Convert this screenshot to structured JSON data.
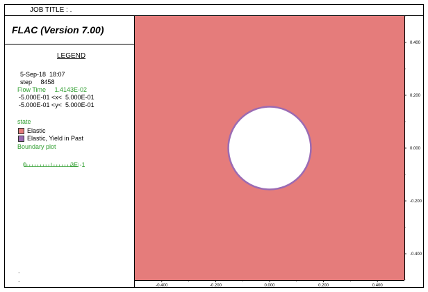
{
  "job_title": "JOB TITLE : .",
  "app_title": "FLAC (Version 7.00)",
  "legend": {
    "heading": "LEGEND",
    "date": "5-Sep-18  18:07",
    "step": "step     8458",
    "flow_time": "Flow Time     1.4143E-02",
    "x_range": "-5.000E-01 <x<  5.000E-01",
    "y_range": "-5.000E-01 <y<  5.000E-01",
    "state_label": "state",
    "state_items": [
      {
        "label": "Elastic",
        "color": "#e57c7b"
      },
      {
        "label": "Elastic, Yield in Past",
        "color": "#9b6bb3"
      }
    ],
    "boundary_label": "Boundary plot",
    "scale_start": "0",
    "scale_end": "2E -1",
    "bottom_marks": [
      ".",
      "."
    ]
  },
  "colors": {
    "elastic": "#e57c7b",
    "yield_past": "#9b6bb3",
    "green_text": "#2e9d2e"
  },
  "model": {
    "x_range": [
      -0.5,
      0.5
    ],
    "y_range": [
      -0.5,
      0.5
    ],
    "tunnel_radius": 0.15
  },
  "axes": {
    "x_ticks": [
      "-0.400",
      "-0.200",
      "0.000",
      "0.200",
      "0.400"
    ],
    "y_ticks": [
      "0.400",
      "0.200",
      "0.000",
      "-0.200",
      "-0.400"
    ]
  }
}
